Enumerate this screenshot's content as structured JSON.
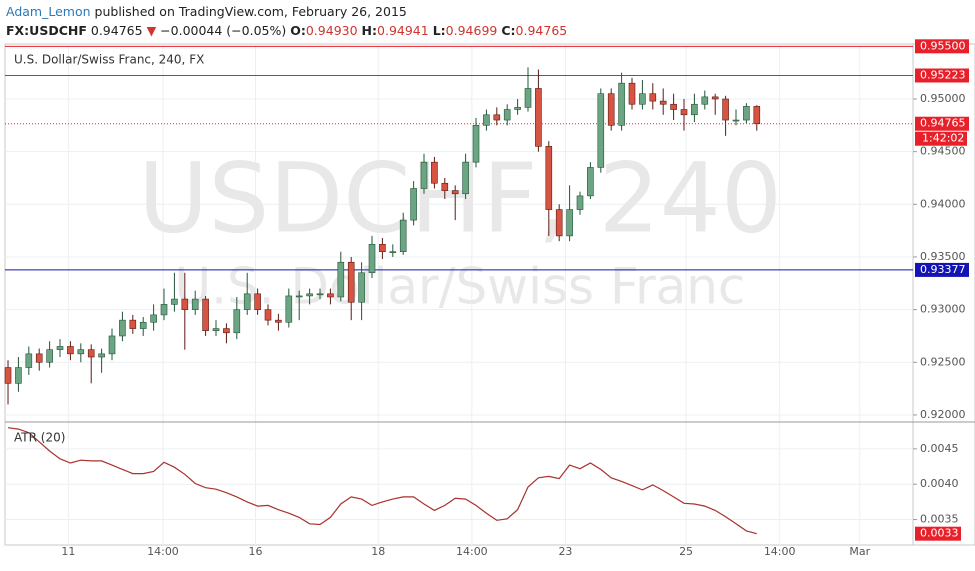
{
  "header": {
    "author": "Adam_Lemon",
    "published": "published on TradingView.com, February 26, 2015",
    "symbol": "FX:USDCHF",
    "price": "0.94765",
    "arrow": "▼",
    "change": "−0.00044 (−0.05%)",
    "o_label": "O:",
    "o": "0.94930",
    "h_label": "H:",
    "h": "0.94941",
    "l_label": "L:",
    "l": "0.94699",
    "c_label": "C:",
    "c": "0.94765"
  },
  "chart_data": [
    {
      "type": "candlestick",
      "title": "U.S. Dollar/Swiss Franc, 240, FX",
      "watermark": "USDCHF, 240",
      "watermark_subtitle": "U.S. Dollar/Swiss Franc",
      "up_color": "#6ba583",
      "down_color": "#d75442",
      "x": [
        0,
        1,
        2,
        3,
        4,
        5,
        6,
        7,
        8,
        9,
        10,
        11,
        12,
        13,
        14,
        15,
        16,
        17,
        18,
        19,
        20,
        21,
        22,
        23,
        24,
        25,
        26,
        27,
        28,
        29,
        30,
        31,
        32,
        33,
        34,
        35,
        36,
        37,
        38,
        39,
        40,
        41,
        42,
        43,
        44,
        45,
        46,
        47,
        48,
        49,
        50,
        51,
        52,
        53,
        54,
        55,
        56,
        57,
        58,
        59,
        60,
        61,
        62,
        63,
        64,
        65,
        66,
        67,
        68,
        69,
        70,
        71,
        72
      ],
      "open": [
        0.9245,
        0.923,
        0.9245,
        0.9258,
        0.925,
        0.9262,
        0.9265,
        0.9258,
        0.9262,
        0.9255,
        0.9258,
        0.9275,
        0.929,
        0.9282,
        0.9288,
        0.9295,
        0.9305,
        0.931,
        0.93,
        0.931,
        0.928,
        0.9282,
        0.9278,
        0.93,
        0.9315,
        0.93,
        0.929,
        0.9288,
        0.9313,
        0.9313,
        0.9315,
        0.9315,
        0.9312,
        0.9345,
        0.9307,
        0.9335,
        0.9362,
        0.9355,
        0.9355,
        0.9385,
        0.9415,
        0.944,
        0.942,
        0.9413,
        0.941,
        0.944,
        0.9475,
        0.9485,
        0.948,
        0.949,
        0.9492,
        0.951,
        0.9455,
        0.9395,
        0.937,
        0.9395,
        0.9408,
        0.9435,
        0.9505,
        0.9475,
        0.9515,
        0.9495,
        0.9505,
        0.9498,
        0.9495,
        0.949,
        0.9485,
        0.9495,
        0.9502,
        0.95,
        0.948,
        0.948,
        0.9493
      ],
      "high": [
        0.9252,
        0.9255,
        0.9265,
        0.9263,
        0.927,
        0.9272,
        0.927,
        0.9268,
        0.9267,
        0.9263,
        0.9282,
        0.9298,
        0.9295,
        0.9293,
        0.9305,
        0.932,
        0.9335,
        0.9335,
        0.9318,
        0.9313,
        0.929,
        0.9287,
        0.9312,
        0.9335,
        0.932,
        0.9305,
        0.9296,
        0.932,
        0.9318,
        0.932,
        0.932,
        0.932,
        0.9355,
        0.935,
        0.9345,
        0.937,
        0.9368,
        0.9362,
        0.9392,
        0.9422,
        0.9448,
        0.9445,
        0.9425,
        0.9418,
        0.9448,
        0.9482,
        0.949,
        0.9492,
        0.9495,
        0.95,
        0.953,
        0.9528,
        0.946,
        0.94,
        0.9418,
        0.9412,
        0.944,
        0.951,
        0.951,
        0.9525,
        0.952,
        0.9518,
        0.9515,
        0.951,
        0.9505,
        0.95,
        0.9505,
        0.9508,
        0.9505,
        0.9503,
        0.949,
        0.9496,
        0.94941
      ],
      "low": [
        0.921,
        0.9222,
        0.9238,
        0.9242,
        0.9245,
        0.9255,
        0.9252,
        0.925,
        0.923,
        0.924,
        0.9252,
        0.927,
        0.9277,
        0.9275,
        0.928,
        0.929,
        0.9298,
        0.9262,
        0.9295,
        0.9275,
        0.9275,
        0.9268,
        0.9272,
        0.9295,
        0.9295,
        0.9285,
        0.928,
        0.9283,
        0.929,
        0.9305,
        0.931,
        0.9305,
        0.9308,
        0.929,
        0.929,
        0.933,
        0.9348,
        0.935,
        0.9352,
        0.938,
        0.941,
        0.9415,
        0.9405,
        0.9385,
        0.9405,
        0.9435,
        0.947,
        0.9475,
        0.9475,
        0.9485,
        0.9488,
        0.945,
        0.937,
        0.9365,
        0.9365,
        0.939,
        0.9405,
        0.943,
        0.947,
        0.947,
        0.949,
        0.949,
        0.949,
        0.9485,
        0.948,
        0.947,
        0.9478,
        0.949,
        0.9485,
        0.9465,
        0.9475,
        0.9477,
        0.94699
      ],
      "close": [
        0.923,
        0.9245,
        0.9258,
        0.925,
        0.9262,
        0.9265,
        0.9258,
        0.9262,
        0.9255,
        0.9258,
        0.9275,
        0.929,
        0.9282,
        0.9288,
        0.9295,
        0.9305,
        0.931,
        0.93,
        0.931,
        0.928,
        0.9282,
        0.9278,
        0.93,
        0.9315,
        0.93,
        0.929,
        0.9288,
        0.9313,
        0.9313,
        0.9315,
        0.9315,
        0.9312,
        0.9345,
        0.9307,
        0.9335,
        0.9362,
        0.9355,
        0.9355,
        0.9385,
        0.9415,
        0.944,
        0.942,
        0.9413,
        0.941,
        0.944,
        0.9475,
        0.9485,
        0.948,
        0.949,
        0.9492,
        0.951,
        0.9455,
        0.9395,
        0.937,
        0.9395,
        0.9408,
        0.9435,
        0.9505,
        0.9475,
        0.9515,
        0.9495,
        0.9505,
        0.9498,
        0.9495,
        0.949,
        0.9485,
        0.9495,
        0.9502,
        0.95,
        0.948,
        0.948,
        0.9493,
        0.94765
      ],
      "xlim": [
        -0.29,
        87.02
      ],
      "xticks": [
        {
          "value": 5.8,
          "label": "11"
        },
        {
          "value": 14.9,
          "label": "14:00"
        },
        {
          "value": 23.8,
          "label": "16"
        },
        {
          "value": 35.6,
          "label": "18"
        },
        {
          "value": 44.6,
          "label": "14:00"
        },
        {
          "value": 53.6,
          "label": "23"
        },
        {
          "value": 65.2,
          "label": "25"
        },
        {
          "value": 74.2,
          "label": "14:00"
        },
        {
          "value": 81.9,
          "label": "Mar"
        }
      ],
      "ylim": [
        0.91933,
        0.95522
      ],
      "yticks": [
        {
          "value": 0.92,
          "label": "0.92000"
        },
        {
          "value": 0.925,
          "label": "0.92500"
        },
        {
          "value": 0.93,
          "label": "0.93000"
        },
        {
          "value": 0.935,
          "label": "0.93500"
        },
        {
          "value": 0.94,
          "label": "0.94000"
        },
        {
          "value": 0.945,
          "label": "0.94500"
        },
        {
          "value": 0.95,
          "label": "0.95000"
        }
      ],
      "grid": true,
      "levels": [
        {
          "value": 0.955,
          "label": "0.95500",
          "color": "#e8202a"
        },
        {
          "value": 0.95223,
          "color": "#e8202a"
        },
        {
          "value": 0.93377,
          "color": "#1414b4"
        }
      ],
      "last": {
        "value": 0.94765,
        "countdown": "1:42:02",
        "color": "#e8202a"
      }
    },
    {
      "type": "line",
      "title": "ATR (20)",
      "color": "#a8322d",
      "values": [
        0.0048,
        0.00478,
        0.00473,
        0.0046,
        0.00447,
        0.00436,
        0.0043,
        0.00434,
        0.00433,
        0.00433,
        0.00427,
        0.00421,
        0.00415,
        0.00415,
        0.00418,
        0.00431,
        0.00424,
        0.00414,
        0.00401,
        0.00395,
        0.00393,
        0.00388,
        0.00382,
        0.00375,
        0.00369,
        0.0037,
        0.00364,
        0.00359,
        0.00353,
        0.00344,
        0.00343,
        0.00353,
        0.00372,
        0.00382,
        0.00379,
        0.0037,
        0.00375,
        0.00379,
        0.00382,
        0.00382,
        0.00372,
        0.00363,
        0.0037,
        0.0038,
        0.00379,
        0.0037,
        0.00359,
        0.00349,
        0.00351,
        0.00364,
        0.00396,
        0.00409,
        0.00411,
        0.00408,
        0.00427,
        0.00422,
        0.0043,
        0.00421,
        0.00409,
        0.00404,
        0.00398,
        0.00392,
        0.00399,
        0.00391,
        0.00382,
        0.00373,
        0.00372,
        0.00369,
        0.00363,
        0.00354,
        0.00344,
        0.00334,
        0.0033
      ],
      "ylim": [
        0.00314,
        0.00488
      ],
      "yticks": [
        0.0035,
        {
          "value": 0.004,
          "label": "0.0040"
        },
        0.0045
      ],
      "last_value": 0.0033,
      "last_color": "#e8202a"
    }
  ]
}
